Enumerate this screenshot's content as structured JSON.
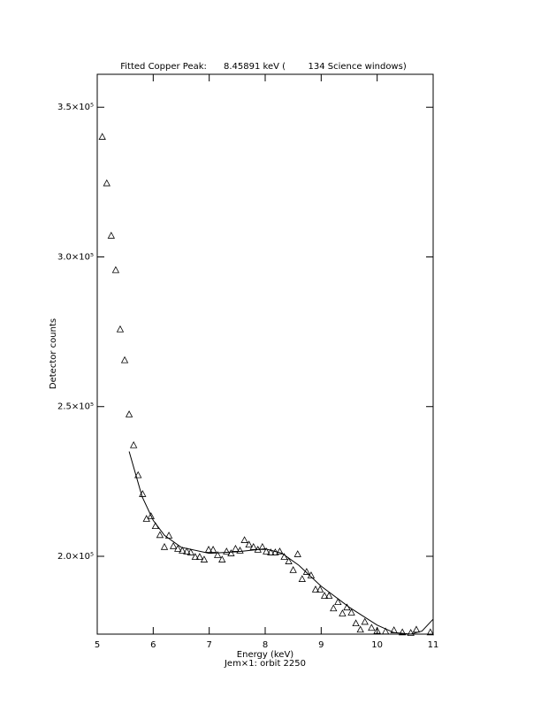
{
  "chart_data": {
    "type": "scatter",
    "title": "Fitted Copper Peak:      8.45891 keV (        134 Science windows)",
    "x_label": "Energy (keV)",
    "subtitle": "Jem×1: orbit 2250",
    "y_label": "Detector counts",
    "xlim": [
      5,
      11
    ],
    "ylim": [
      174000,
      361000
    ],
    "xticks": [
      5,
      6,
      7,
      8,
      9,
      10,
      11
    ],
    "yticks": [
      {
        "value": 200000,
        "label": "2.0×10⁵"
      },
      {
        "value": 250000,
        "label": "2.5×10⁵"
      },
      {
        "value": 300000,
        "label": "3.0×10⁵"
      },
      {
        "value": 350000,
        "label": "3.5×10⁵"
      }
    ],
    "series": [
      {
        "kind": "points",
        "color": "#000000",
        "x": [
          5.09,
          5.17,
          5.25,
          5.33,
          5.41,
          5.49,
          5.57,
          5.65,
          5.73,
          5.81,
          5.88,
          5.96,
          6.04,
          6.12,
          6.2,
          6.28,
          6.36,
          6.44,
          6.52,
          6.6,
          6.67,
          6.75,
          6.83,
          6.91,
          6.99,
          7.07,
          7.15,
          7.23,
          7.31,
          7.39,
          7.47,
          7.55,
          7.63,
          7.71,
          7.79,
          7.87,
          7.95,
          8.02,
          8.1,
          8.18,
          8.26,
          8.34,
          8.42,
          8.5,
          8.58,
          8.66,
          8.74,
          8.82,
          8.9,
          8.98,
          9.06,
          9.14,
          9.22,
          9.3,
          9.38,
          9.46,
          9.54,
          9.62,
          9.7,
          9.78,
          9.9,
          10.0,
          10.15,
          10.3,
          10.45,
          10.6,
          10.7,
          10.95
        ],
        "values": [
          340000,
          324500,
          307000,
          295500,
          275700,
          265400,
          247300,
          237000,
          227000,
          220700,
          212400,
          213300,
          210000,
          207000,
          203000,
          206800,
          203300,
          202400,
          201800,
          201500,
          201200,
          199700,
          199700,
          198800,
          202100,
          202100,
          200300,
          198800,
          201500,
          200900,
          202400,
          201800,
          205300,
          203800,
          203000,
          202100,
          203000,
          201500,
          201200,
          201200,
          201500,
          199700,
          198200,
          195300,
          200600,
          192300,
          194700,
          193500,
          188800,
          188800,
          186700,
          186700,
          182500,
          184600,
          180800,
          182800,
          181100,
          177500,
          175400,
          178000,
          176000,
          175000,
          174800,
          175200,
          174500,
          174300,
          175400,
          174500
        ]
      },
      {
        "kind": "line",
        "color": "#000000",
        "x": [
          5.57,
          5.8,
          6.0,
          6.2,
          6.5,
          7.0,
          7.5,
          8.0,
          8.3,
          8.6,
          9.0,
          9.5,
          10.0,
          10.3,
          10.6,
          10.8,
          11.0
        ],
        "values": [
          235000,
          220000,
          212000,
          207000,
          203000,
          201000,
          201500,
          202500,
          201000,
          197000,
          190000,
          183000,
          177000,
          174500,
          174000,
          175000,
          179000
        ]
      }
    ]
  }
}
